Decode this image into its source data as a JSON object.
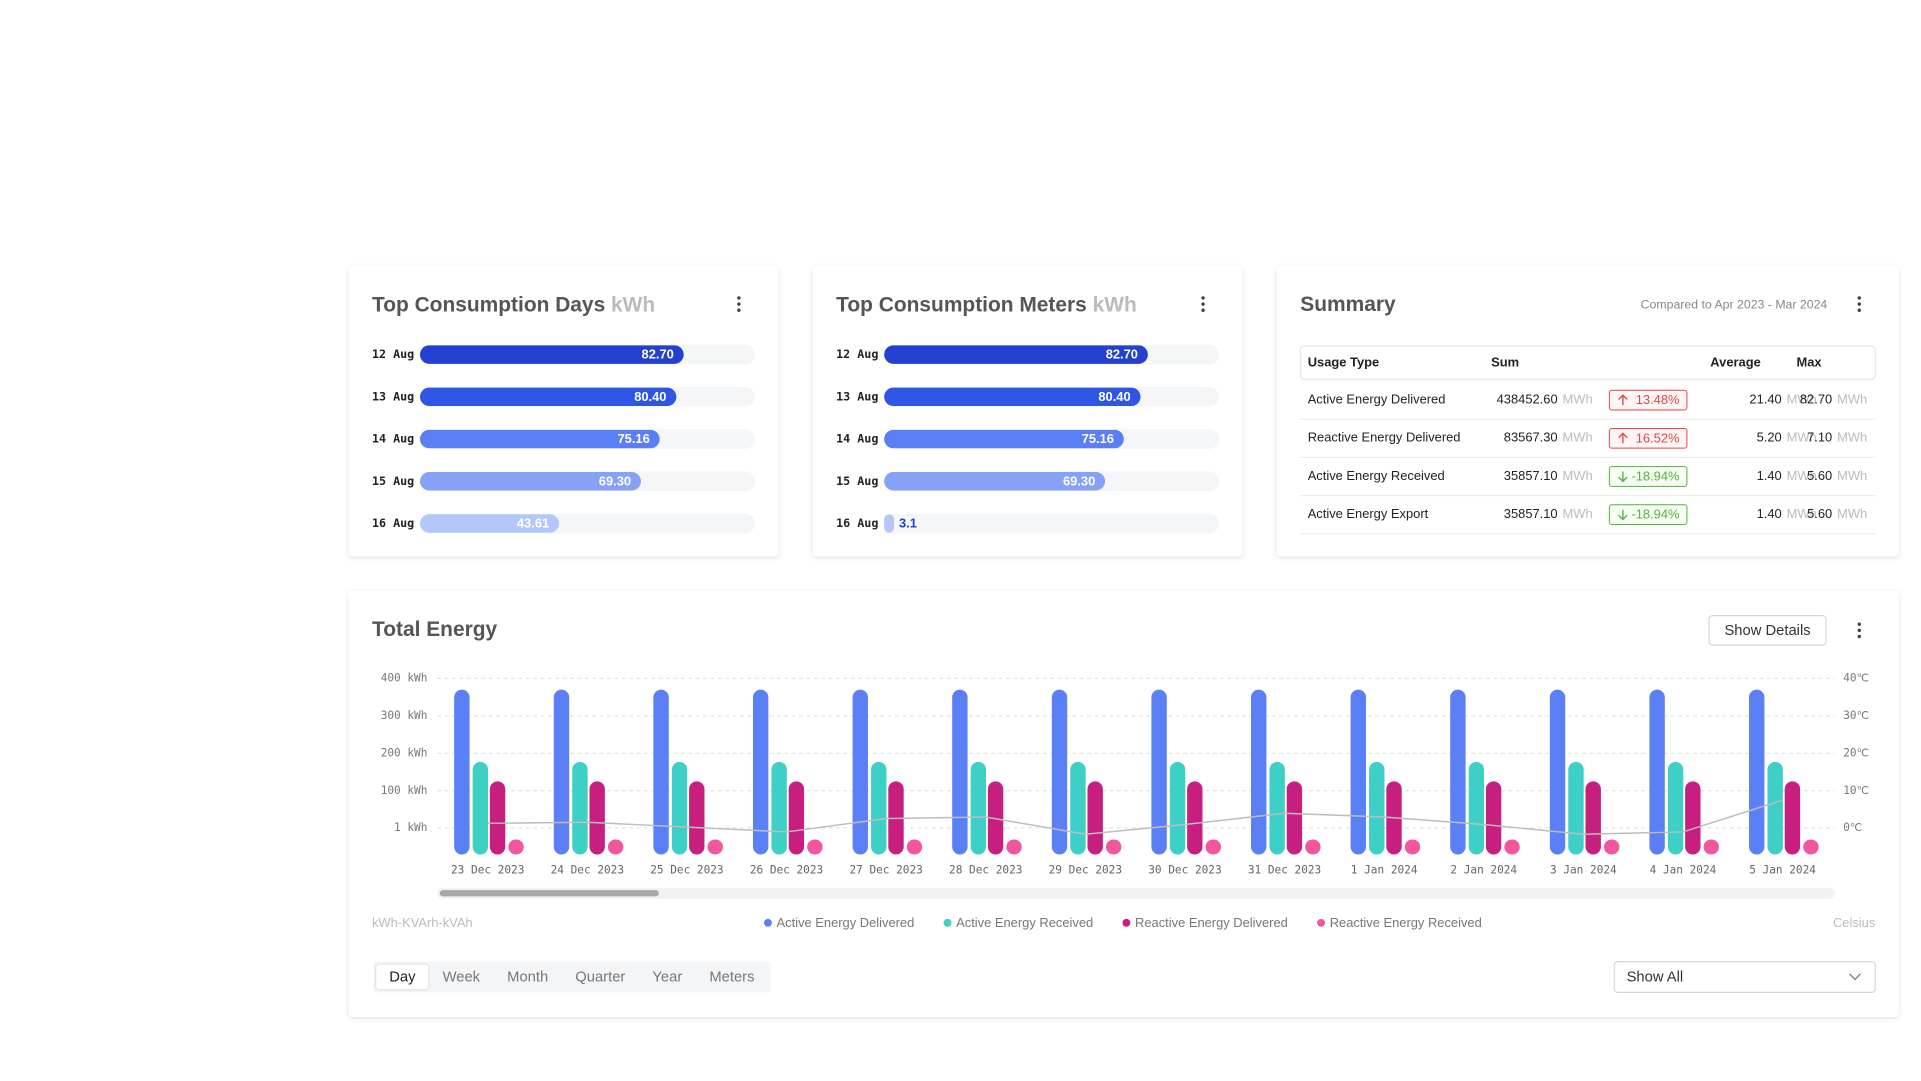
{
  "chart_data": [
    {
      "type": "hbar",
      "title": "Top Consumption Days",
      "unit": "kWh",
      "categories": [
        "12 Aug",
        "13 Aug",
        "14 Aug",
        "15 Aug",
        "16 Aug"
      ],
      "values": [
        82.7,
        80.4,
        75.16,
        69.3,
        43.61
      ],
      "value_labels": [
        "82.70",
        "80.40",
        "75.16",
        "69.30",
        "43.61"
      ],
      "colors": [
        "#2340d0",
        "#2f55e4",
        "#5a7ef3",
        "#86a2f6",
        "#b4c7fa"
      ]
    },
    {
      "type": "hbar",
      "title": "Top Consumption Meters",
      "unit": "kWh",
      "categories": [
        "12 Aug",
        "13 Aug",
        "14 Aug",
        "15 Aug",
        "16 Aug"
      ],
      "values": [
        82.7,
        80.4,
        75.16,
        69.3,
        3.1
      ],
      "value_labels": [
        "82.70",
        "80.40",
        "75.16",
        "69.30",
        "3.1"
      ],
      "colors": [
        "#2340d0",
        "#2f55e4",
        "#5a7ef3",
        "#86a2f6",
        "#b4c7fa"
      ]
    },
    {
      "type": "bar",
      "title": "Total Energy",
      "categories": [
        "23 Dec 2023",
        "24 Dec 2023",
        "25 Dec 2023",
        "26 Dec 2023",
        "27 Dec 2023",
        "28 Dec 2023",
        "29 Dec 2023",
        "30 Dec 2023",
        "31 Dec 2023",
        "1 Jan 2024",
        "2 Jan 2024",
        "3 Jan 2024",
        "4 Jan 2024",
        "5 Jan 2024"
      ],
      "series": [
        {
          "name": "Active Energy Delivered",
          "color": "#5b7ff5",
          "values": [
            370,
            370,
            370,
            370,
            370,
            370,
            370,
            370,
            370,
            370,
            370,
            370,
            370,
            370
          ]
        },
        {
          "name": "Active Energy Received",
          "color": "#3ecfc6",
          "values": [
            177,
            177,
            177,
            177,
            177,
            177,
            177,
            177,
            177,
            177,
            177,
            177,
            177,
            177
          ]
        },
        {
          "name": "Reactive Energy Delivered",
          "color": "#c71f7f",
          "values": [
            125,
            125,
            125,
            125,
            125,
            125,
            125,
            125,
            125,
            125,
            125,
            125,
            125,
            125
          ]
        },
        {
          "name": "Reactive Energy Received",
          "color": "#f2579d",
          "values": [
            -30,
            -30,
            -30,
            -30,
            -30,
            -30,
            -30,
            -30,
            -30,
            -30,
            -30,
            -30,
            -30,
            -30
          ]
        },
        {
          "type": "line",
          "axis": "y2",
          "color": "#bdbdbd",
          "values": [
            1.3,
            1.6,
            0.3,
            -1,
            2.6,
            3,
            -1.6,
            1,
            4,
            3,
            1,
            -1.6,
            -1,
            7.5
          ]
        }
      ],
      "ylabel": "kWh-KVArh-kVAh",
      "y2label": "Celsius",
      "ylim": [
        -70,
        400
      ],
      "yticks": [
        {
          "value": 1,
          "label": "1 kWh"
        },
        {
          "value": 100,
          "label": "100 kWh"
        },
        {
          "value": 200,
          "label": "200 kWh"
        },
        {
          "value": 300,
          "label": "300 kWh"
        },
        {
          "value": 400,
          "label": "400 kWh"
        }
      ],
      "y2lim": [
        -7,
        40
      ],
      "y2ticks": [
        {
          "value": 0,
          "label": "0℃"
        },
        {
          "value": 10,
          "label": "10℃"
        },
        {
          "value": 20,
          "label": "20℃"
        },
        {
          "value": 30,
          "label": "30℃"
        },
        {
          "value": 40,
          "label": "40℃"
        }
      ],
      "grid": true
    }
  ],
  "summary": {
    "title": "Summary",
    "comparison": "Compared to Apr 2023 - Mar 2024",
    "columns": [
      "Usage Type",
      "Sum",
      "Average",
      "Max"
    ],
    "unit": "MWh",
    "rows": [
      {
        "usage_type": "Active Energy Delivered",
        "sum": "438452.60",
        "change": "13.48%",
        "trend": "up",
        "average": "21.40",
        "max": "82.70"
      },
      {
        "usage_type": "Reactive Energy Delivered",
        "sum": "83567.30",
        "change": "16.52%",
        "trend": "up",
        "average": "5.20",
        "max": "7.10"
      },
      {
        "usage_type": "Active Energy Received",
        "sum": "35857.10",
        "change": "-18.94%",
        "trend": "down",
        "average": "1.40",
        "max": "5.60"
      },
      {
        "usage_type": "Active Energy Export",
        "sum": "35857.10",
        "change": "-18.94%",
        "trend": "down",
        "average": "1.40",
        "max": "5.60"
      }
    ]
  },
  "controls": {
    "details_button": "Show Details",
    "periods": [
      "Day",
      "Week",
      "Month",
      "Quarter",
      "Year",
      "Meters"
    ],
    "selected_period": "Day",
    "filter": "Show All"
  }
}
